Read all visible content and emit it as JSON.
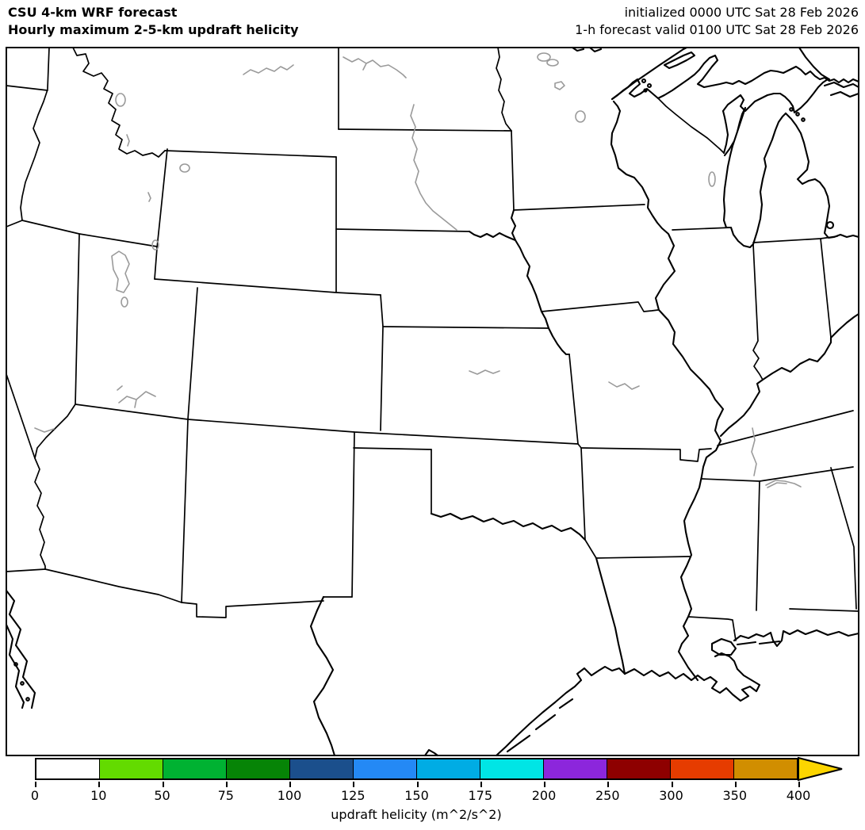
{
  "header": {
    "title_line1": "CSU 4-km WRF forecast",
    "title_line2": "Hourly maximum 2-5-km updraft helicity",
    "init_line": "initialized 0000 UTC Sat 28 Feb 2026",
    "valid_line": "1-h forecast valid 0100 UTC Sat 28 Feb 2026"
  },
  "colorbar": {
    "label": "updraft helicity (m^2/s^2)",
    "tick_labels": [
      "0",
      "10",
      "50",
      "75",
      "100",
      "125",
      "150",
      "175",
      "200",
      "250",
      "300",
      "350",
      "400"
    ],
    "levels": [
      0,
      10,
      50,
      75,
      100,
      125,
      150,
      175,
      200,
      250,
      300,
      350,
      400
    ],
    "segment_colors": [
      "#ffffff",
      "#63db00",
      "#00b232",
      "#068406",
      "#1b4f8c",
      "#2489f5",
      "#00ace4",
      "#00e5e5",
      "#8c26dc",
      "#8e0000",
      "#e63c00",
      "#d18e00"
    ],
    "arrow_color": "#fcd500",
    "outline_color": "#000000"
  }
}
